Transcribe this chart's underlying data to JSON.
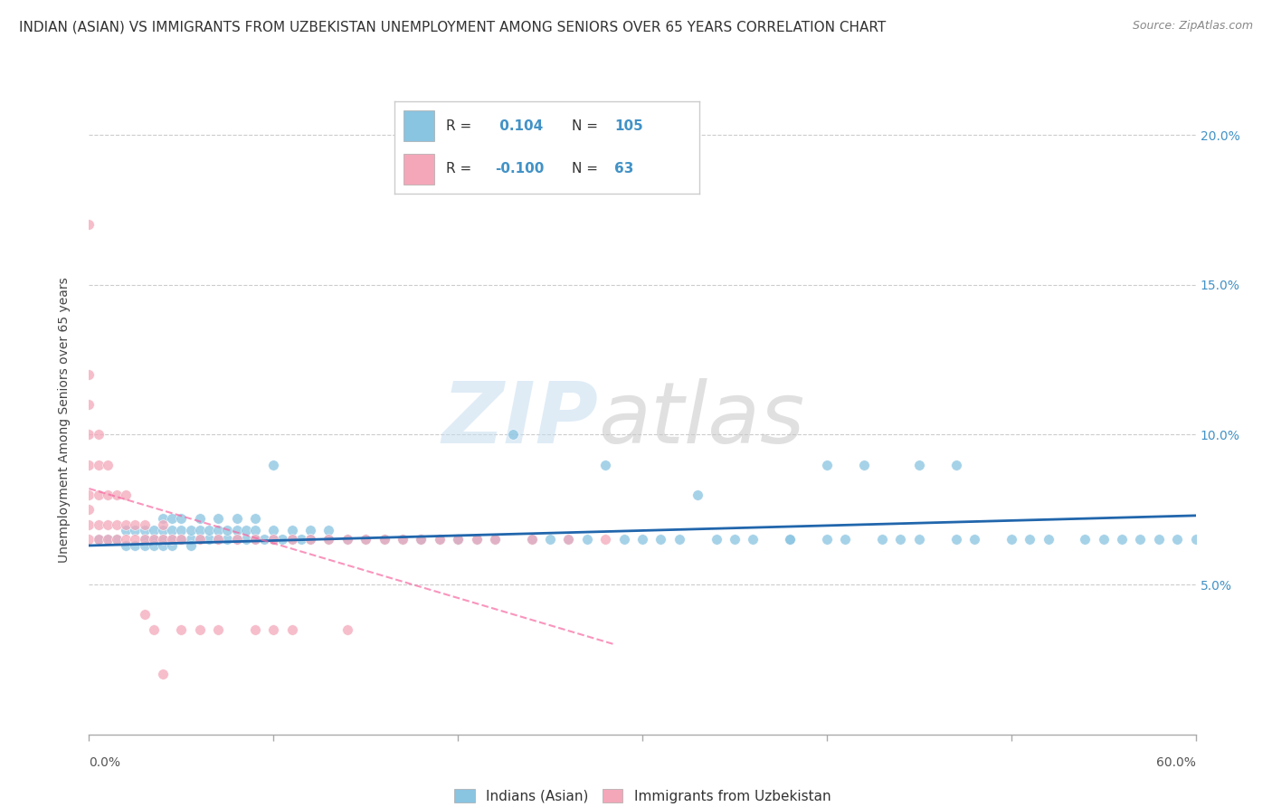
{
  "title": "INDIAN (ASIAN) VS IMMIGRANTS FROM UZBEKISTAN UNEMPLOYMENT AMONG SENIORS OVER 65 YEARS CORRELATION CHART",
  "source": "Source: ZipAtlas.com",
  "ylabel": "Unemployment Among Seniors over 65 years",
  "blue_R": 0.104,
  "blue_N": 105,
  "pink_R": -0.1,
  "pink_N": 63,
  "x_min": 0.0,
  "x_max": 0.6,
  "y_min": 0.0,
  "y_max": 0.21,
  "y_ticks": [
    0.05,
    0.1,
    0.15,
    0.2
  ],
  "y_tick_labels": [
    "5.0%",
    "10.0%",
    "15.0%",
    "20.0%"
  ],
  "blue_color": "#89c4e1",
  "pink_color": "#f4a7b9",
  "blue_line_color": "#2166ac",
  "pink_line_color": "#f768a1",
  "watermark_zip": "ZIP",
  "watermark_atlas": "atlas",
  "title_fontsize": 11,
  "axis_fontsize": 10,
  "legend_label_blue": "Indians (Asian)",
  "legend_label_pink": "Immigrants from Uzbekistan",
  "blue_x": [
    0.005,
    0.01,
    0.015,
    0.02,
    0.02,
    0.025,
    0.025,
    0.03,
    0.03,
    0.03,
    0.035,
    0.035,
    0.035,
    0.04,
    0.04,
    0.04,
    0.04,
    0.045,
    0.045,
    0.045,
    0.045,
    0.05,
    0.05,
    0.05,
    0.055,
    0.055,
    0.055,
    0.06,
    0.06,
    0.06,
    0.065,
    0.065,
    0.07,
    0.07,
    0.07,
    0.075,
    0.075,
    0.08,
    0.08,
    0.08,
    0.085,
    0.085,
    0.09,
    0.09,
    0.09,
    0.095,
    0.1,
    0.1,
    0.1,
    0.105,
    0.11,
    0.11,
    0.115,
    0.12,
    0.12,
    0.13,
    0.13,
    0.14,
    0.15,
    0.16,
    0.17,
    0.18,
    0.19,
    0.2,
    0.22,
    0.23,
    0.25,
    0.27,
    0.28,
    0.3,
    0.32,
    0.33,
    0.35,
    0.36,
    0.38,
    0.4,
    0.41,
    0.43,
    0.44,
    0.45,
    0.47,
    0.48,
    0.5,
    0.51,
    0.52,
    0.54,
    0.55,
    0.56,
    0.57,
    0.58,
    0.59,
    0.6,
    0.42,
    0.45,
    0.31,
    0.26,
    0.21,
    0.24,
    0.47,
    0.4,
    0.38,
    0.34,
    0.29,
    0.2,
    0.18
  ],
  "blue_y": [
    0.065,
    0.065,
    0.065,
    0.063,
    0.068,
    0.063,
    0.068,
    0.065,
    0.068,
    0.063,
    0.065,
    0.068,
    0.063,
    0.065,
    0.068,
    0.072,
    0.063,
    0.065,
    0.068,
    0.072,
    0.063,
    0.065,
    0.068,
    0.072,
    0.065,
    0.068,
    0.063,
    0.065,
    0.068,
    0.072,
    0.065,
    0.068,
    0.065,
    0.068,
    0.072,
    0.065,
    0.068,
    0.065,
    0.068,
    0.072,
    0.065,
    0.068,
    0.065,
    0.068,
    0.072,
    0.065,
    0.065,
    0.068,
    0.09,
    0.065,
    0.065,
    0.068,
    0.065,
    0.068,
    0.065,
    0.065,
    0.068,
    0.065,
    0.065,
    0.065,
    0.065,
    0.065,
    0.065,
    0.065,
    0.065,
    0.1,
    0.065,
    0.065,
    0.09,
    0.065,
    0.065,
    0.08,
    0.065,
    0.065,
    0.065,
    0.065,
    0.065,
    0.065,
    0.065,
    0.065,
    0.065,
    0.065,
    0.065,
    0.065,
    0.065,
    0.065,
    0.065,
    0.065,
    0.065,
    0.065,
    0.065,
    0.065,
    0.09,
    0.09,
    0.065,
    0.065,
    0.065,
    0.065,
    0.09,
    0.09,
    0.065,
    0.065,
    0.065,
    0.065,
    0.065
  ],
  "pink_x": [
    0.0,
    0.0,
    0.0,
    0.0,
    0.0,
    0.0,
    0.0,
    0.0,
    0.0,
    0.005,
    0.005,
    0.005,
    0.005,
    0.005,
    0.01,
    0.01,
    0.01,
    0.01,
    0.015,
    0.015,
    0.015,
    0.02,
    0.02,
    0.02,
    0.025,
    0.025,
    0.03,
    0.03,
    0.03,
    0.035,
    0.035,
    0.04,
    0.04,
    0.04,
    0.045,
    0.05,
    0.05,
    0.06,
    0.06,
    0.07,
    0.07,
    0.08,
    0.09,
    0.09,
    0.1,
    0.1,
    0.11,
    0.11,
    0.12,
    0.13,
    0.14,
    0.14,
    0.15,
    0.16,
    0.17,
    0.18,
    0.19,
    0.2,
    0.21,
    0.22,
    0.24,
    0.26,
    0.28
  ],
  "pink_y": [
    0.065,
    0.07,
    0.075,
    0.08,
    0.09,
    0.1,
    0.11,
    0.12,
    0.17,
    0.065,
    0.07,
    0.08,
    0.09,
    0.1,
    0.065,
    0.07,
    0.08,
    0.09,
    0.065,
    0.07,
    0.08,
    0.065,
    0.07,
    0.08,
    0.065,
    0.07,
    0.065,
    0.07,
    0.04,
    0.065,
    0.035,
    0.065,
    0.07,
    0.02,
    0.065,
    0.065,
    0.035,
    0.065,
    0.035,
    0.065,
    0.035,
    0.065,
    0.065,
    0.035,
    0.065,
    0.035,
    0.065,
    0.035,
    0.065,
    0.065,
    0.065,
    0.035,
    0.065,
    0.065,
    0.065,
    0.065,
    0.065,
    0.065,
    0.065,
    0.065,
    0.065,
    0.065,
    0.065
  ],
  "blue_line_x": [
    0.0,
    0.6
  ],
  "blue_line_y": [
    0.063,
    0.073
  ],
  "pink_line_x": [
    0.0,
    0.285
  ],
  "pink_line_y": [
    0.082,
    0.03
  ]
}
